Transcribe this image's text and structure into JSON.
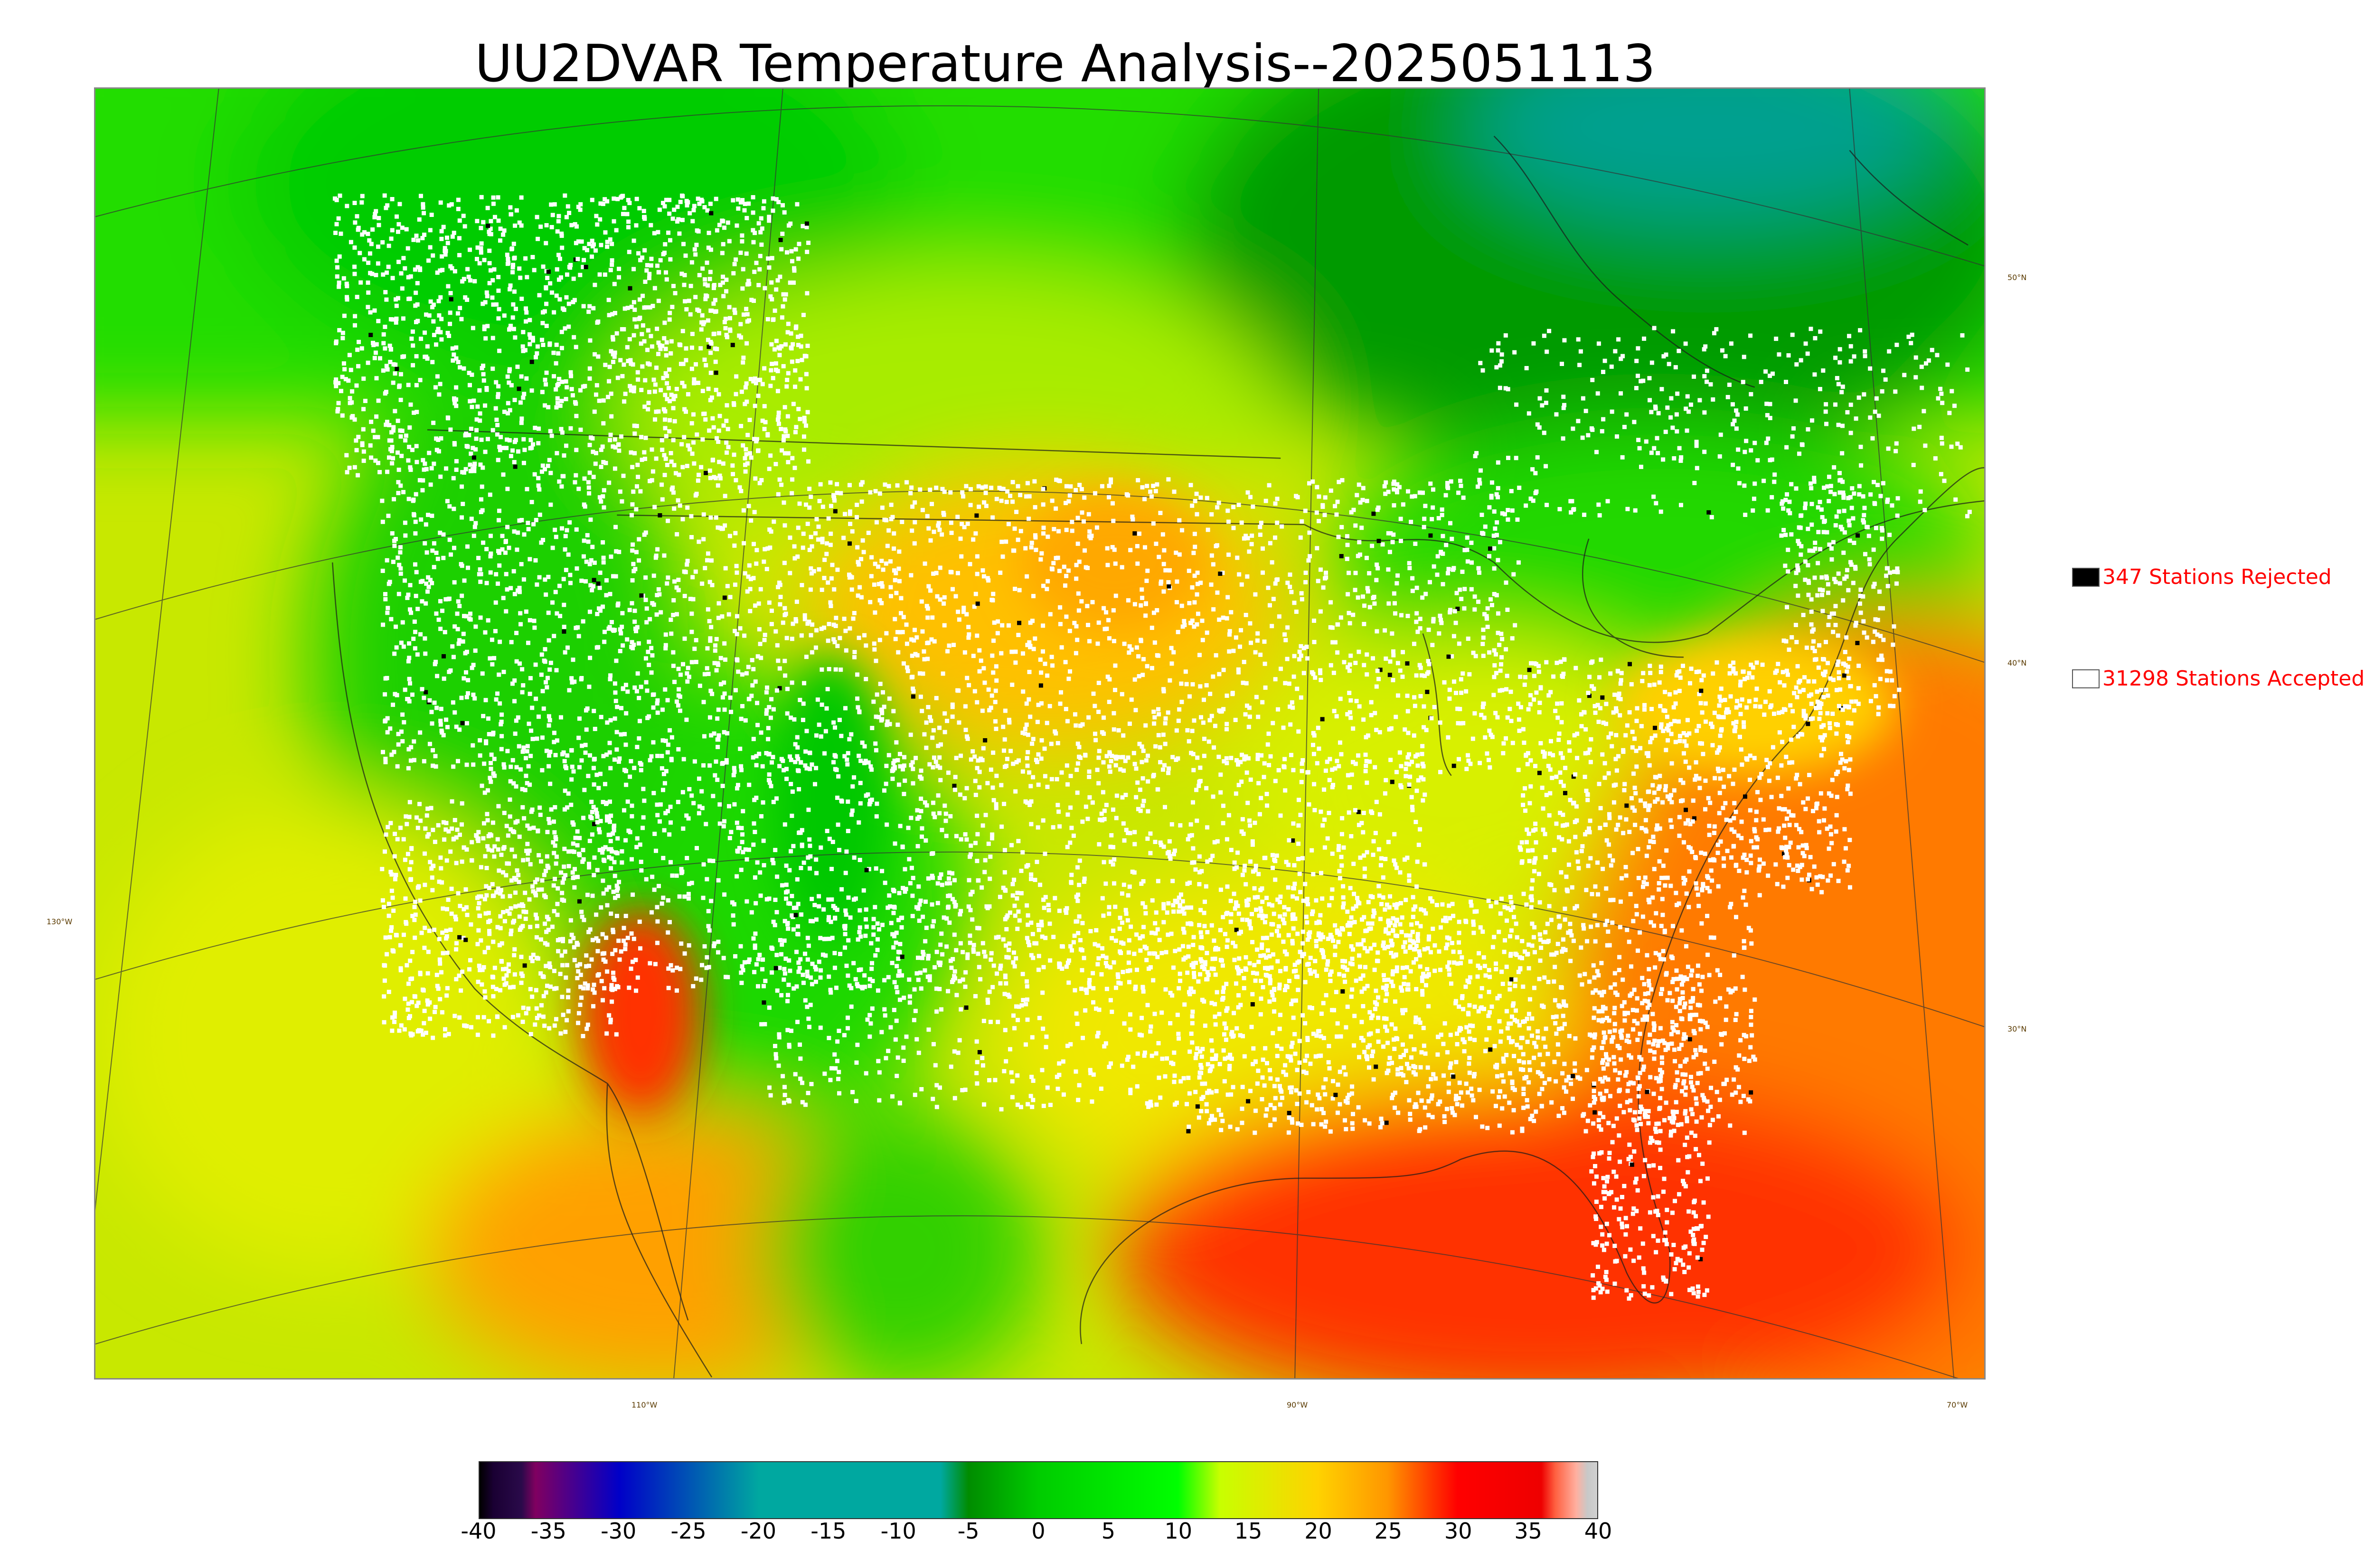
{
  "title": "UU2DVAR Temperature Analysis--2025051113",
  "legend": {
    "rejected": {
      "label": "347 Stations Rejected",
      "color": "#000000"
    },
    "accepted": {
      "label": "31298 Stations Accepted",
      "color": "#ffffff"
    },
    "text_color": "#ff0000"
  },
  "graticule_labels": {
    "lat_50": "50°N",
    "lat_40": "40°N",
    "lat_30": "30°N",
    "lon_130": "130°W",
    "lon_110": "110°W",
    "lon_90": "90°W",
    "lon_70": "70°W"
  },
  "colorbar": {
    "ticks": [
      "-40",
      "-35",
      "-30",
      "-25",
      "-20",
      "-15",
      "-10",
      "-5",
      "0",
      "5",
      "10",
      "15",
      "20",
      "25",
      "30",
      "35",
      "40"
    ],
    "range": [
      -40,
      40
    ],
    "stops": [
      {
        "value": -40,
        "color": "#000000"
      },
      {
        "value": -39,
        "color": "#1a0033"
      },
      {
        "value": -37,
        "color": "#2a0a4a"
      },
      {
        "value": -36,
        "color": "#800060"
      },
      {
        "value": -30,
        "color": "#0000c8"
      },
      {
        "value": -20,
        "color": "#00a8a0"
      },
      {
        "value": -7,
        "color": "#00a8a0"
      },
      {
        "value": -5,
        "color": "#008c00"
      },
      {
        "value": 0,
        "color": "#00cc00"
      },
      {
        "value": 10,
        "color": "#00ff00"
      },
      {
        "value": 13,
        "color": "#c8ff00"
      },
      {
        "value": 20,
        "color": "#ffd200"
      },
      {
        "value": 25,
        "color": "#ff9600"
      },
      {
        "value": 30,
        "color": "#ff0000"
      },
      {
        "value": 36,
        "color": "#ee0000"
      },
      {
        "value": 37,
        "color": "#ff6040"
      },
      {
        "value": 38.5,
        "color": "#ffb0a0"
      },
      {
        "value": 39.3,
        "color": "#c8c8c8"
      },
      {
        "value": 40,
        "color": "#d0d0d0"
      }
    ]
  }
}
